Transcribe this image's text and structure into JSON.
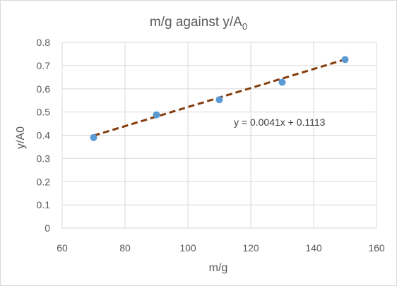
{
  "chart_data": {
    "type": "scatter",
    "title": "m/g against y/A",
    "title_subscript": "0",
    "xlabel": "m/g",
    "ylabel": "y/A0",
    "xlim": [
      60,
      160
    ],
    "ylim": [
      0,
      0.8
    ],
    "xticks": [
      "60",
      "80",
      "100",
      "120",
      "140",
      "160"
    ],
    "yticks": [
      "0",
      "0.1",
      "0.2",
      "0.3",
      "0.4",
      "0.5",
      "0.6",
      "0.7",
      "0.8"
    ],
    "grid": true,
    "legend": "none",
    "series": [
      {
        "x": [
          70,
          90,
          110,
          130,
          150
        ],
        "y": [
          0.39,
          0.488,
          0.553,
          0.628,
          0.726
        ],
        "color": "#5b9bd5"
      }
    ],
    "trendline": {
      "type": "linear",
      "slope": 0.0041,
      "intercept": 0.1113,
      "x_range": [
        70,
        150
      ],
      "color": "#843c0c",
      "style": "dashed",
      "equation_label": "y = 0.0041x + 0.1113"
    }
  }
}
